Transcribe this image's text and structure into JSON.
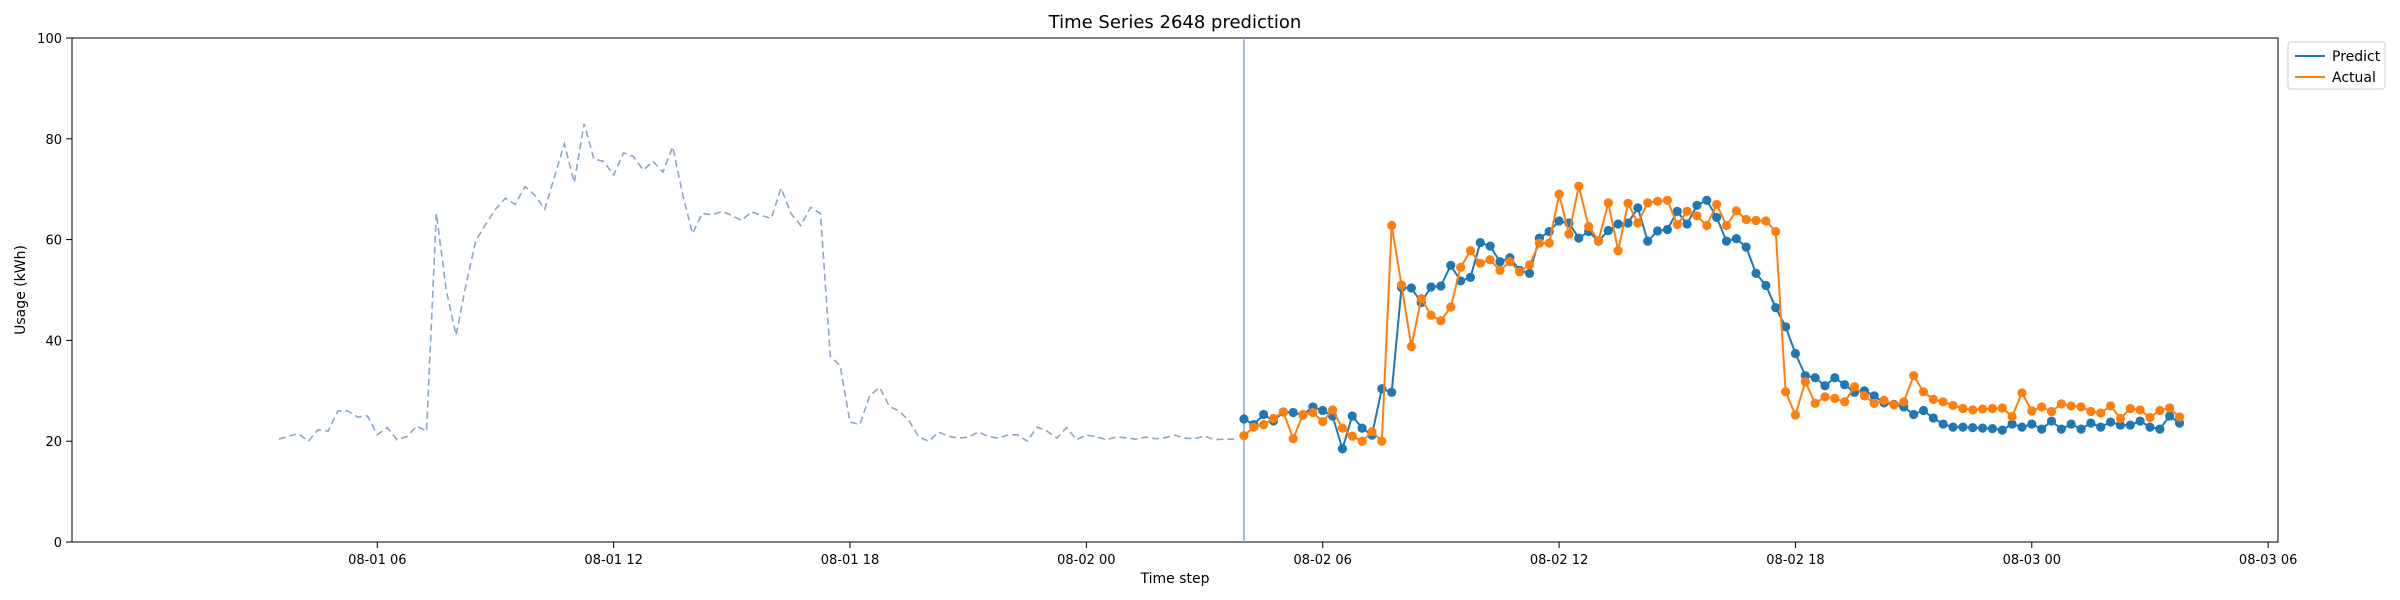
{
  "chart_data": {
    "type": "line",
    "title": "Time Series 2648 prediction",
    "xlabel": "Time step",
    "ylabel": "Usage (kWh)",
    "ylim": [
      0,
      100
    ],
    "xlim": [
      "2025-07-31 22:15",
      "2025-08-03 06:15"
    ],
    "x_ticks": [
      {
        "label": "08-01 06",
        "t": "2025-08-01 06:00"
      },
      {
        "label": "08-01 12",
        "t": "2025-08-01 12:00"
      },
      {
        "label": "08-01 18",
        "t": "2025-08-01 18:00"
      },
      {
        "label": "08-02 00",
        "t": "2025-08-02 00:00"
      },
      {
        "label": "08-02 06",
        "t": "2025-08-02 06:00"
      },
      {
        "label": "08-02 12",
        "t": "2025-08-02 12:00"
      },
      {
        "label": "08-02 18",
        "t": "2025-08-02 18:00"
      },
      {
        "label": "08-03 00",
        "t": "2025-08-03 00:00"
      },
      {
        "label": "08-03 06",
        "t": "2025-08-03 06:00"
      }
    ],
    "y_ticks": [
      0,
      20,
      40,
      60,
      80,
      100
    ],
    "legend_position": "top-right outside",
    "grid": false,
    "colors": {
      "predict": "#1f77b4",
      "actual": "#ff7f0e",
      "history": "#8aa6c8",
      "split_line": "#8aa6c8"
    },
    "history_start": "2025-08-01 03:30",
    "forecast_start": "2025-08-02 04:00",
    "step_minutes": 15,
    "split_at": "2025-08-02 04:00",
    "series": [
      {
        "name": "",
        "style": "dashed",
        "values": [
          20.4,
          21.0,
          21.5,
          20.0,
          22.3,
          22.0,
          26.0,
          26.0,
          24.8,
          25.0,
          21.3,
          22.7,
          20.3,
          20.9,
          23.0,
          22.0,
          65.2,
          50.0,
          41.0,
          51.0,
          59.8,
          63.0,
          66.0,
          68.2,
          67.0,
          70.5,
          68.8,
          66.0,
          72.5,
          79.0,
          71.3,
          83.0,
          76.0,
          75.5,
          72.8,
          77.2,
          76.5,
          73.8,
          75.5,
          73.4,
          78.4,
          69.0,
          61.2,
          65.2,
          64.9,
          65.6,
          64.8,
          63.8,
          65.5,
          64.8,
          64.2,
          70.2,
          65.2,
          62.8,
          66.4,
          65.2,
          36.8,
          35.0,
          23.8,
          23.3,
          29.0,
          30.7,
          26.9,
          26.0,
          24.0,
          20.8,
          20.0,
          21.8,
          21.0,
          20.6,
          20.8,
          21.8,
          21.0,
          20.6,
          21.2,
          21.3,
          20.0,
          22.8,
          22.0,
          20.6,
          22.7,
          20.3,
          21.2,
          20.9,
          20.3,
          20.8,
          20.7,
          20.4,
          20.8,
          20.5,
          20.7,
          21.2,
          20.6,
          20.5,
          21.0,
          20.3,
          20.4,
          20.4
        ]
      },
      {
        "name": "Predict",
        "style": "solid-marker",
        "values": [
          24.4,
          23.3,
          25.3,
          24.0,
          25.8,
          25.7,
          25.2,
          26.8,
          26.1,
          25.0,
          18.5,
          25.0,
          22.6,
          21.2,
          30.4,
          29.7,
          50.5,
          50.4,
          47.5,
          50.6,
          50.8,
          54.9,
          51.8,
          52.5,
          59.4,
          58.7,
          55.6,
          56.4,
          53.9,
          53.3,
          60.3,
          61.6,
          63.7,
          63.3,
          60.3,
          61.6,
          59.7,
          61.8,
          63.1,
          63.3,
          66.3,
          59.7,
          61.7,
          62.0,
          65.6,
          63.1,
          66.8,
          67.8,
          64.4,
          59.7,
          60.2,
          58.5,
          53.3,
          50.9,
          46.5,
          42.7,
          37.4,
          33.0,
          32.6,
          31.0,
          32.6,
          31.2,
          29.7,
          30.0,
          29.0,
          27.6,
          27.3,
          26.8,
          25.3,
          26.1,
          24.6,
          23.4,
          22.8,
          22.8,
          22.7,
          22.6,
          22.5,
          22.2,
          23.4,
          22.8,
          23.4,
          22.4,
          24.0,
          22.4,
          23.4,
          22.4,
          23.6,
          22.8,
          23.8,
          23.2,
          23.2,
          24.0,
          22.8,
          22.4,
          25.0,
          23.6
        ]
      },
      {
        "name": "Actual",
        "style": "solid-marker",
        "values": [
          21.1,
          22.8,
          23.3,
          24.5,
          25.8,
          20.5,
          25.3,
          25.7,
          23.9,
          26.2,
          22.6,
          21.0,
          20.0,
          21.9,
          20.0,
          62.8,
          51.0,
          38.8,
          48.3,
          45.0,
          43.9,
          46.6,
          54.5,
          57.8,
          55.3,
          56.0,
          53.9,
          55.6,
          53.6,
          55.0,
          59.3,
          59.3,
          69.0,
          61.1,
          70.6,
          62.6,
          59.8,
          67.3,
          57.8,
          67.2,
          63.3,
          67.3,
          67.6,
          67.8,
          63.0,
          65.6,
          64.7,
          62.8,
          67.0,
          62.8,
          65.7,
          64.0,
          63.8,
          63.7,
          61.6,
          29.8,
          25.2,
          31.8,
          27.5,
          28.8,
          28.5,
          27.8,
          30.8,
          29.0,
          27.5,
          28.1,
          27.2,
          27.8,
          33.0,
          29.8,
          28.3,
          27.8,
          27.1,
          26.5,
          26.2,
          26.4,
          26.5,
          26.6,
          24.9,
          29.6,
          26.0,
          26.8,
          25.9,
          27.4,
          27.0,
          26.8,
          25.9,
          25.6,
          27.0,
          24.5,
          26.5,
          26.2,
          24.7,
          26.1,
          26.6,
          24.8
        ]
      }
    ]
  }
}
